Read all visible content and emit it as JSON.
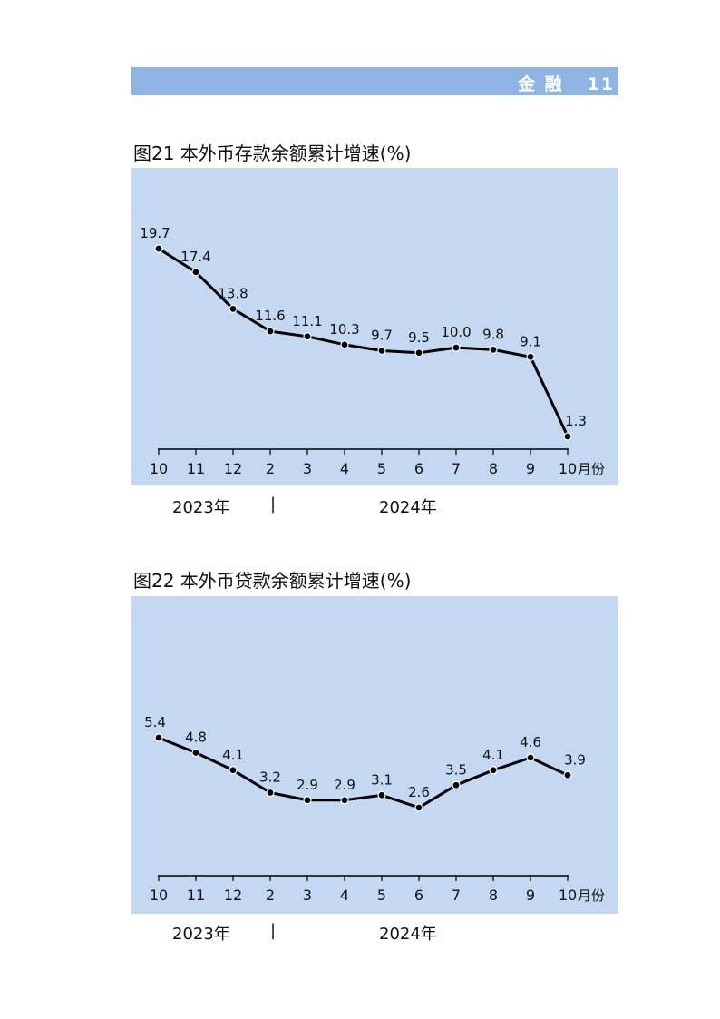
{
  "header": {
    "section": "金 融",
    "page_number": "11"
  },
  "chart_data": [
    {
      "type": "line",
      "title": "图21  本外币存款余额累计增速(%)",
      "categories": [
        "10",
        "11",
        "12",
        "2",
        "3",
        "4",
        "5",
        "6",
        "7",
        "8",
        "9",
        "10"
      ],
      "x_unit": "月份",
      "year_labels": [
        "2023年",
        "|",
        "2024年"
      ],
      "series": [
        {
          "values": [
            19.7,
            17.4,
            13.8,
            11.6,
            11.1,
            10.3,
            9.7,
            9.5,
            10.0,
            9.8,
            9.1,
            1.3
          ]
        }
      ],
      "data_labels": [
        "19.7",
        "17.4",
        "13.8",
        "11.6",
        "11.1",
        "10.3",
        "9.7",
        "9.5",
        "10.0",
        "9.8",
        "9.1",
        "1.3"
      ],
      "grid": false,
      "background": "#c5d8f1",
      "line_color": "#000000"
    },
    {
      "type": "line",
      "title": "图22  本外币贷款余额累计增速(%)",
      "categories": [
        "10",
        "11",
        "12",
        "2",
        "3",
        "4",
        "5",
        "6",
        "7",
        "8",
        "9",
        "10"
      ],
      "x_unit": "月份",
      "year_labels": [
        "2023年",
        "|",
        "2024年"
      ],
      "series": [
        {
          "values": [
            5.4,
            4.8,
            4.1,
            3.2,
            2.9,
            2.9,
            3.1,
            2.6,
            3.5,
            4.1,
            4.6,
            3.9
          ]
        }
      ],
      "data_labels": [
        "5.4",
        "4.8",
        "4.1",
        "3.2",
        "2.9",
        "2.9",
        "3.1",
        "2.6",
        "3.5",
        "4.1",
        "4.6",
        "3.9"
      ],
      "grid": false,
      "background": "#c5d8f1",
      "line_color": "#000000"
    }
  ]
}
